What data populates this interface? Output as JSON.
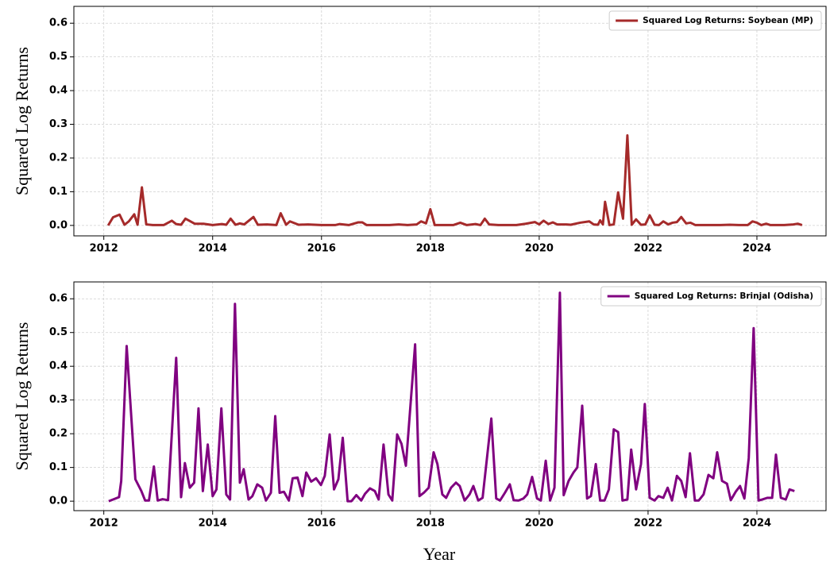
{
  "chart_data": [
    {
      "type": "line",
      "ylabel": "Squared Log Returns",
      "legend": "upper right",
      "grid": true,
      "xlim": [
        2011.45,
        2025.27
      ],
      "xticks": [
        2012,
        2014,
        2016,
        2018,
        2020,
        2022,
        2024
      ],
      "ylim": [
        -0.031,
        0.65
      ],
      "yticks": [
        {
          "value": 0,
          "label": "0.0"
        },
        0.1,
        0.2,
        0.3,
        0.4,
        0.5,
        0.6
      ],
      "x": [
        2012.08,
        2012.17,
        2012.29,
        2012.38,
        2012.46,
        2012.56,
        2012.62,
        2012.7,
        2012.78,
        2012.9,
        2013.1,
        2013.25,
        2013.33,
        2013.42,
        2013.5,
        2013.67,
        2013.83,
        2014.0,
        2014.17,
        2014.25,
        2014.33,
        2014.42,
        2014.5,
        2014.58,
        2014.75,
        2014.83,
        2015.0,
        2015.17,
        2015.25,
        2015.35,
        2015.42,
        2015.58,
        2015.75,
        2016.0,
        2016.25,
        2016.33,
        2016.5,
        2016.67,
        2016.75,
        2016.83,
        2017.25,
        2017.42,
        2017.58,
        2017.75,
        2017.83,
        2017.92,
        2018.0,
        2018.08,
        2018.42,
        2018.55,
        2018.67,
        2018.83,
        2018.92,
        2019.0,
        2019.08,
        2019.25,
        2019.58,
        2019.75,
        2019.92,
        2020.0,
        2020.08,
        2020.17,
        2020.25,
        2020.33,
        2020.5,
        2020.58,
        2020.75,
        2020.92,
        2021.0,
        2021.08,
        2021.12,
        2021.17,
        2021.21,
        2021.29,
        2021.37,
        2021.45,
        2021.54,
        2021.62,
        2021.7,
        2021.78,
        2021.87,
        2021.95,
        2022.03,
        2022.12,
        2022.2,
        2022.28,
        2022.37,
        2022.45,
        2022.53,
        2022.61,
        2022.7,
        2022.78,
        2022.87,
        2023.08,
        2023.33,
        2023.5,
        2023.67,
        2023.83,
        2023.92,
        2024.0,
        2024.08,
        2024.17,
        2024.25,
        2024.5,
        2024.67,
        2024.75,
        2024.83
      ],
      "series": [
        {
          "name": "Squared Log Returns: Soybean (MP)",
          "color": "#a52a2a",
          "values": [
            0.0,
            0.024,
            0.032,
            0.002,
            0.012,
            0.033,
            0.002,
            0.113,
            0.003,
            0.001,
            0.001,
            0.014,
            0.004,
            0.002,
            0.02,
            0.005,
            0.005,
            0.001,
            0.004,
            0.002,
            0.02,
            0.002,
            0.006,
            0.003,
            0.025,
            0.002,
            0.003,
            0.001,
            0.036,
            0.002,
            0.012,
            0.002,
            0.003,
            0.001,
            0.001,
            0.004,
            0.001,
            0.009,
            0.009,
            0.001,
            0.001,
            0.003,
            0.001,
            0.003,
            0.012,
            0.006,
            0.048,
            0.001,
            0.001,
            0.008,
            0.001,
            0.004,
            0.001,
            0.02,
            0.003,
            0.001,
            0.001,
            0.005,
            0.01,
            0.003,
            0.014,
            0.004,
            0.009,
            0.003,
            0.003,
            0.002,
            0.008,
            0.012,
            0.003,
            0.002,
            0.015,
            0.003,
            0.07,
            0.001,
            0.003,
            0.098,
            0.02,
            0.267,
            0.002,
            0.018,
            0.002,
            0.003,
            0.03,
            0.002,
            0.001,
            0.012,
            0.003,
            0.008,
            0.01,
            0.025,
            0.006,
            0.008,
            0.001,
            0.001,
            0.001,
            0.002,
            0.001,
            0.001,
            0.012,
            0.008,
            0.001,
            0.005,
            0.001,
            0.001,
            0.003,
            0.005,
            0.001
          ]
        }
      ]
    },
    {
      "type": "line",
      "ylabel": "Squared Log Returns",
      "xlabel": "Year",
      "legend": "upper right",
      "grid": true,
      "xlim": [
        2011.45,
        2025.27
      ],
      "xticks": [
        2012,
        2014,
        2016,
        2018,
        2020,
        2022,
        2024
      ],
      "ylim": [
        -0.028,
        0.65
      ],
      "yticks": [
        {
          "value": 0,
          "label": "0.0"
        },
        0.1,
        0.2,
        0.3,
        0.4,
        0.5,
        0.6
      ],
      "x": [
        2012.09,
        2012.28,
        2012.32,
        2012.42,
        2012.58,
        2012.69,
        2012.76,
        2012.83,
        2012.92,
        2012.99,
        2013.08,
        2013.18,
        2013.33,
        2013.42,
        2013.49,
        2013.58,
        2013.66,
        2013.74,
        2013.82,
        2013.91,
        2014.0,
        2014.07,
        2014.16,
        2014.25,
        2014.32,
        2014.41,
        2014.5,
        2014.57,
        2014.66,
        2014.73,
        2014.82,
        2014.91,
        2014.98,
        2015.07,
        2015.15,
        2015.23,
        2015.31,
        2015.4,
        2015.47,
        2015.56,
        2015.65,
        2015.72,
        2015.81,
        2015.9,
        2015.99,
        2016.06,
        2016.15,
        2016.23,
        2016.31,
        2016.39,
        2016.48,
        2016.55,
        2016.64,
        2016.73,
        2016.8,
        2016.89,
        2016.98,
        2017.05,
        2017.14,
        2017.23,
        2017.3,
        2017.39,
        2017.47,
        2017.55,
        2017.72,
        2017.8,
        2017.88,
        2017.97,
        2018.06,
        2018.13,
        2018.22,
        2018.29,
        2018.38,
        2018.47,
        2018.54,
        2018.63,
        2018.72,
        2018.79,
        2018.88,
        2018.96,
        2019.12,
        2019.21,
        2019.28,
        2019.37,
        2019.46,
        2019.53,
        2019.62,
        2019.71,
        2019.78,
        2019.87,
        2019.96,
        2020.03,
        2020.12,
        2020.2,
        2020.28,
        2020.38,
        2020.45,
        2020.54,
        2020.63,
        2020.7,
        2020.79,
        2020.88,
        2020.95,
        2021.04,
        2021.12,
        2021.2,
        2021.28,
        2021.37,
        2021.45,
        2021.53,
        2021.62,
        2021.69,
        2021.78,
        2021.87,
        2021.94,
        2022.03,
        2022.12,
        2022.19,
        2022.28,
        2022.36,
        2022.44,
        2022.53,
        2022.61,
        2022.69,
        2022.77,
        2022.86,
        2022.93,
        2023.02,
        2023.11,
        2023.2,
        2023.27,
        2023.36,
        2023.45,
        2023.52,
        2023.61,
        2023.69,
        2023.77,
        2023.85,
        2023.94,
        2024.03,
        2024.1,
        2024.19,
        2024.28,
        2024.35,
        2024.44,
        2024.53,
        2024.6,
        2024.69
      ],
      "series": [
        {
          "name": "Squared Log Returns: Brinjal (Odisha)",
          "color": "#800080",
          "values": [
            0.0,
            0.012,
            0.06,
            0.46,
            0.065,
            0.03,
            0.002,
            0.002,
            0.103,
            0.002,
            0.006,
            0.003,
            0.425,
            0.012,
            0.113,
            0.04,
            0.055,
            0.275,
            0.03,
            0.168,
            0.015,
            0.035,
            0.275,
            0.02,
            0.005,
            0.585,
            0.055,
            0.095,
            0.005,
            0.015,
            0.05,
            0.04,
            0.002,
            0.025,
            0.252,
            0.025,
            0.028,
            0.002,
            0.068,
            0.07,
            0.015,
            0.085,
            0.058,
            0.068,
            0.048,
            0.075,
            0.198,
            0.035,
            0.065,
            0.188,
            0.0,
            0.0,
            0.018,
            0.002,
            0.022,
            0.038,
            0.03,
            0.005,
            0.168,
            0.02,
            0.002,
            0.198,
            0.17,
            0.105,
            0.465,
            0.015,
            0.025,
            0.04,
            0.145,
            0.11,
            0.02,
            0.01,
            0.04,
            0.055,
            0.045,
            0.002,
            0.02,
            0.045,
            0.002,
            0.01,
            0.245,
            0.008,
            0.002,
            0.025,
            0.05,
            0.003,
            0.002,
            0.008,
            0.02,
            0.072,
            0.008,
            0.002,
            0.12,
            0.002,
            0.04,
            0.618,
            0.018,
            0.06,
            0.085,
            0.1,
            0.283,
            0.008,
            0.015,
            0.11,
            0.002,
            0.002,
            0.035,
            0.213,
            0.205,
            0.002,
            0.005,
            0.153,
            0.035,
            0.11,
            0.288,
            0.01,
            0.002,
            0.015,
            0.01,
            0.04,
            0.002,
            0.075,
            0.06,
            0.012,
            0.142,
            0.002,
            0.002,
            0.02,
            0.078,
            0.068,
            0.145,
            0.06,
            0.052,
            0.003,
            0.028,
            0.045,
            0.008,
            0.128,
            0.513,
            0.002,
            0.005,
            0.01,
            0.01,
            0.138,
            0.01,
            0.005,
            0.035,
            0.03
          ]
        }
      ]
    }
  ]
}
